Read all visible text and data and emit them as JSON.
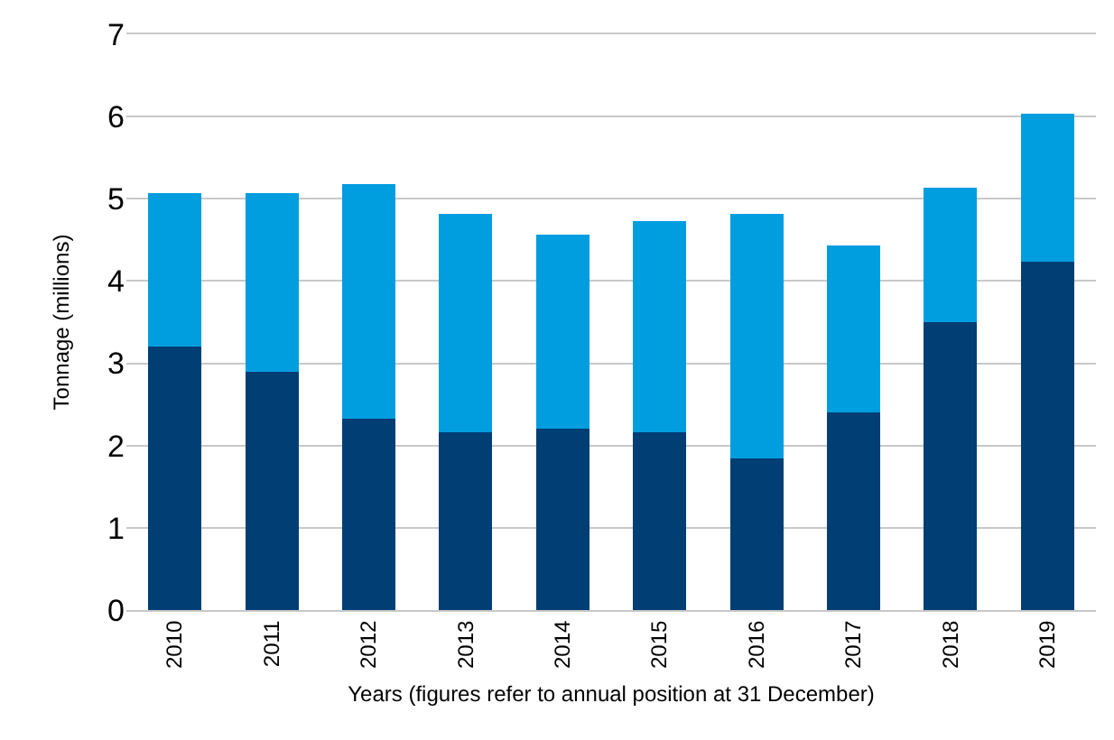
{
  "chart_data": {
    "type": "bar",
    "stacked": true,
    "xlabel": "Years (figures refer to annual position at 31 December)",
    "ylabel": "Tonnage (millions)",
    "categories": [
      "2010",
      "2011",
      "2012",
      "2013",
      "2014",
      "2015",
      "2016",
      "2017",
      "2018",
      "2019"
    ],
    "series": [
      {
        "color": "#003e74",
        "values": [
          3.2,
          2.9,
          2.33,
          2.16,
          2.2,
          2.16,
          1.84,
          2.4,
          3.5,
          4.23
        ]
      },
      {
        "color": "#009ddf",
        "values": [
          1.87,
          2.17,
          2.85,
          2.66,
          2.36,
          2.57,
          2.98,
          2.03,
          1.64,
          1.8
        ]
      }
    ],
    "ylim": [
      0,
      7
    ],
    "yticks": [
      0,
      1,
      2,
      3,
      4,
      5,
      6,
      7
    ],
    "grid": "y"
  }
}
